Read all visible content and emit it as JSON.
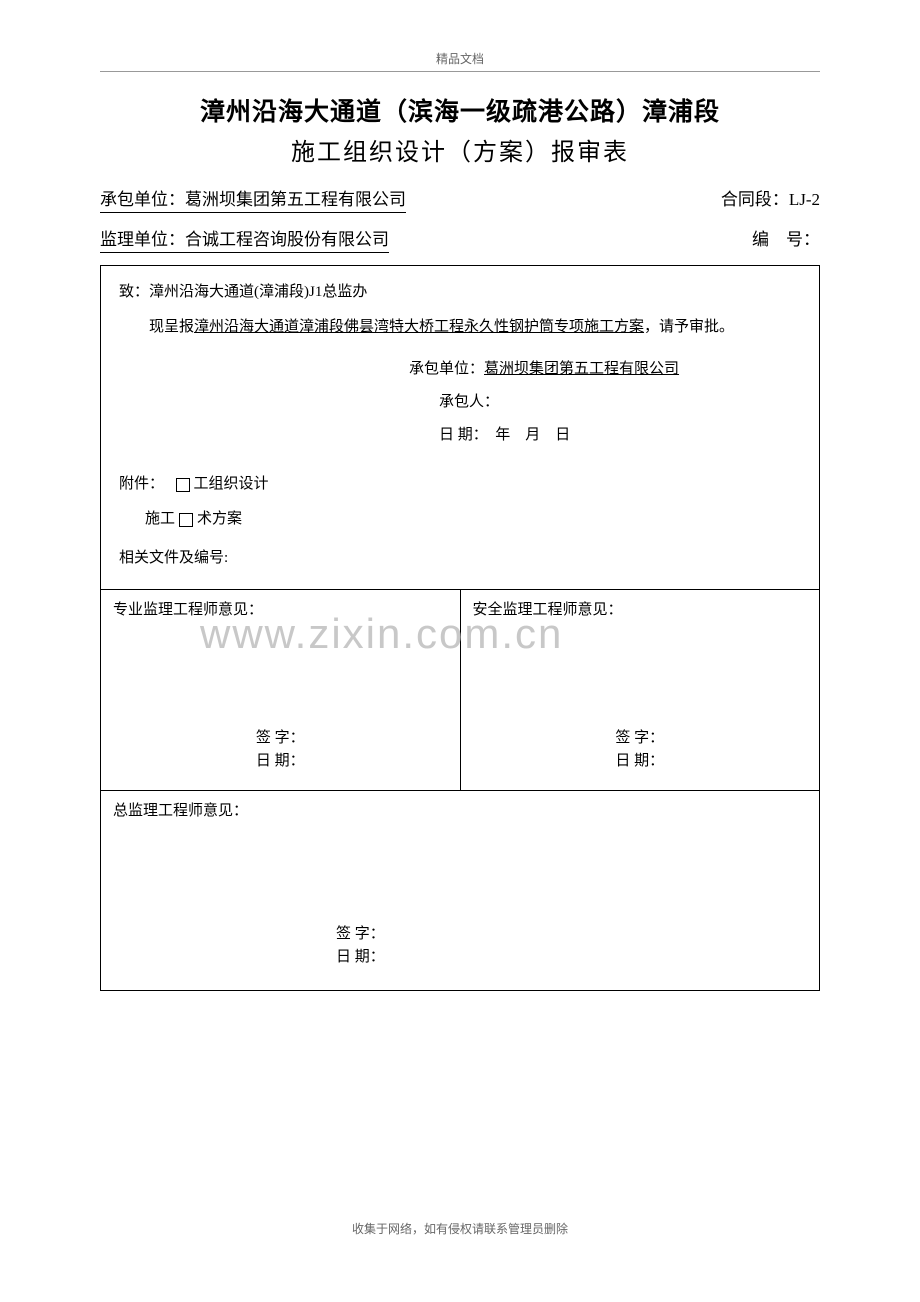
{
  "header_tag": "精品文档",
  "title_line1": "漳州沿海大通道（滨海一级疏港公路）漳浦段",
  "title_line2": "施工组织设计（方案）报审表",
  "contractor_label": "承包单位：",
  "contractor_name": "葛洲坝集团第五工程有限公司",
  "contract_section_label": "合同段：",
  "contract_section_value": "LJ-2",
  "supervisor_label": "监理单位：",
  "supervisor_name": "合诚工程咨询股份有限公司",
  "number_label": "编　号：",
  "addressed_to": "致：漳州沿海大通道(漳浦段)J1总监办",
  "submit_prefix": "现呈报",
  "submit_content": "漳州沿海大通道漳浦段佛昙湾特大桥工程永久性钢护筒专项施工方案",
  "submit_suffix": "，请予审批。",
  "contractor_unit_label": "承包单位：",
  "contractor_unit_value": "葛洲坝集团第五工程有限公司",
  "contractor_person_label": "承包人：",
  "date_label": "日 期：　年　月　日",
  "attach_label": "附件：",
  "attach_item1": "工组织设计",
  "attach_item2_pre": "施工",
  "attach_item2_post": "术方案",
  "related_docs_label": "相关文件及编号:",
  "opinion1_title": "专业监理工程师意见：",
  "opinion2_title": "安全监理工程师意见：",
  "sign_label": "签 字：",
  "date_sign_label": "日 期：",
  "chief_opinion_title": "总监理工程师意见：",
  "watermark": "www.zixin.com.cn",
  "footer": "收集于网络，如有侵权请联系管理员删除"
}
